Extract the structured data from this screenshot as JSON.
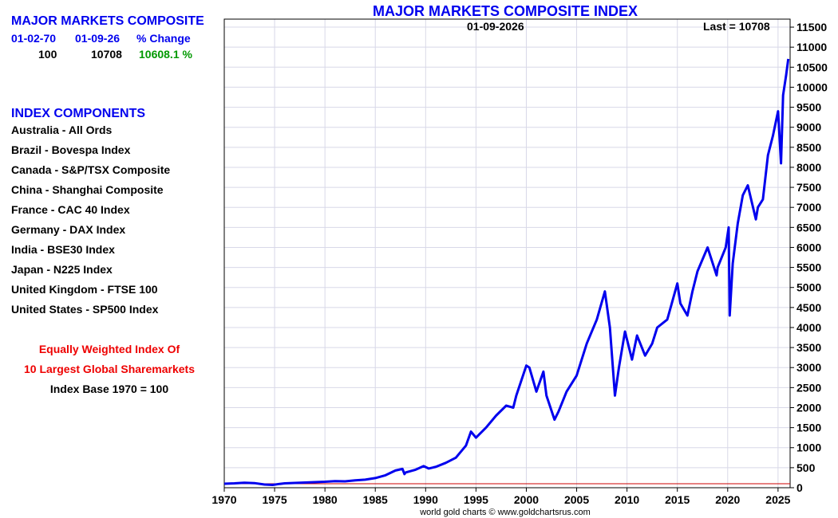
{
  "summary": {
    "title": "MAJOR MARKETS COMPOSITE",
    "start_date": "01-02-70",
    "end_date": "01-09-26",
    "change_label": "% Change",
    "start_value": "100",
    "end_value": "10708",
    "change_value": "10608.1 %"
  },
  "components": {
    "title": "INDEX COMPONENTS",
    "items": [
      "Australia - All Ords",
      "Brazil - Bovespa Index",
      "Canada - S&P/TSX Composite",
      "China - Shanghai Composite",
      "France - CAC 40 Index",
      "Germany - DAX Index",
      "India - BSE30 Index",
      "Japan - N225 Index",
      "United Kingdom - FTSE 100",
      "United States - SP500 Index"
    ]
  },
  "notes": {
    "line1": "Equally Weighted Index Of",
    "line2": "10 Largest Global Sharemarkets",
    "line3": "Index Base 1970 = 100"
  },
  "credit": "world gold charts © www.goldchartsrus.com",
  "colors": {
    "series": "#0000ee",
    "baseline": "#cc0000",
    "grid": "#d8d8e8",
    "title": "#0000ee",
    "positive": "#009900",
    "note": "#ee0000"
  },
  "chart_data": {
    "type": "line",
    "title": "MAJOR MARKETS COMPOSITE INDEX",
    "date_label": "01-09-2026",
    "last_label": "Last = 10708",
    "xlabel": "",
    "ylabel": "",
    "xlim": [
      1970,
      2026.2
    ],
    "ylim": [
      0,
      11700
    ],
    "x_ticks": [
      1970,
      1975,
      1980,
      1985,
      1990,
      1995,
      2000,
      2005,
      2010,
      2015,
      2020,
      2025
    ],
    "y_ticks": [
      0,
      500,
      1000,
      1500,
      2000,
      2500,
      3000,
      3500,
      4000,
      4500,
      5000,
      5500,
      6000,
      6500,
      7000,
      7500,
      8000,
      8500,
      9000,
      9500,
      10000,
      10500,
      11000,
      11500
    ],
    "y_axis_side": "right",
    "grid": true,
    "baseline": 100,
    "series": [
      {
        "x": [
          1970,
          1971,
          1972,
          1973,
          1974,
          1974.8,
          1975.5,
          1976,
          1977,
          1978,
          1979,
          1980,
          1981,
          1982,
          1983,
          1984,
          1985,
          1986,
          1987,
          1987.7,
          1987.9,
          1988,
          1989,
          1989.8,
          1990.3,
          1990.8,
          1991,
          1992,
          1993,
          1994,
          1994.5,
          1995,
          1996,
          1997,
          1998,
          1998.7,
          1999,
          2000,
          2000.3,
          2001,
          2001.7,
          2002,
          2002.8,
          2003.2,
          2004,
          2005,
          2006,
          2007,
          2007.8,
          2008.3,
          2008.8,
          2009.2,
          2009.8,
          2010.5,
          2011,
          2011.8,
          2012.5,
          2013,
          2014,
          2015,
          2015.3,
          2016,
          2016.5,
          2017,
          2018,
          2018.9,
          2019,
          2019.8,
          2020.1,
          2020.2,
          2020.5,
          2021,
          2021.5,
          2022,
          2022.8,
          2023,
          2023.5,
          2024,
          2024.5,
          2025,
          2025.3,
          2025.5,
          2025.8,
          2026.02
        ],
        "values": [
          100,
          110,
          125,
          115,
          80,
          70,
          95,
          110,
          120,
          130,
          140,
          150,
          165,
          160,
          185,
          200,
          240,
          310,
          430,
          470,
          340,
          380,
          450,
          540,
          480,
          510,
          520,
          620,
          750,
          1050,
          1400,
          1250,
          1500,
          1800,
          2050,
          2000,
          2300,
          3050,
          3000,
          2400,
          2900,
          2300,
          1700,
          1900,
          2400,
          2800,
          3600,
          4200,
          4900,
          4000,
          2300,
          3000,
          3900,
          3200,
          3800,
          3300,
          3600,
          4000,
          4200,
          5100,
          4600,
          4300,
          4900,
          5400,
          6000,
          5300,
          5500,
          6000,
          6500,
          4300,
          5600,
          6600,
          7300,
          7550,
          6700,
          7000,
          7200,
          8300,
          8800,
          9400,
          8100,
          9800,
          10300,
          10708
        ]
      }
    ]
  }
}
